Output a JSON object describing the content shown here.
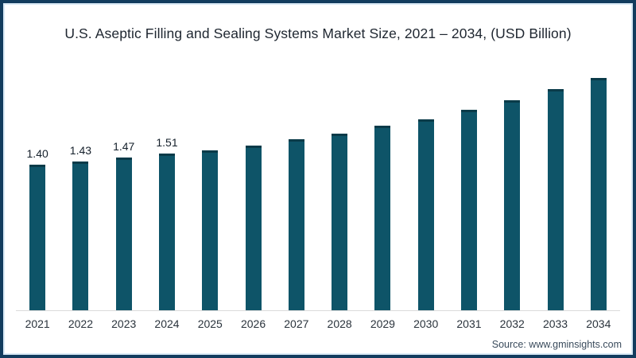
{
  "title": "U.S. Aseptic Filling and Sealing Systems Market Size, 2021 – 2034, (USD Billion)",
  "source": "Source: www.gminsights.com",
  "colors": {
    "frame_border": "#123C5E",
    "frame_hairline": "#D9EAF6",
    "background": "#FFFFFF",
    "bar": "#0E5468",
    "bar_top_cap": "#0A3B49",
    "axis_line": "#DBDBDB"
  },
  "chart_data": {
    "type": "bar",
    "title": "U.S. Aseptic Filling and Sealing Systems Market Size, 2021 – 2034, (USD Billion)",
    "xlabel": "",
    "ylabel": "USD Billion",
    "categories": [
      "2021",
      "2022",
      "2023",
      "2024",
      "2025",
      "2026",
      "2027",
      "2028",
      "2029",
      "2030",
      "2031",
      "2032",
      "2033",
      "2034"
    ],
    "values": [
      1.4,
      1.43,
      1.47,
      1.51,
      1.54,
      1.59,
      1.65,
      1.7,
      1.78,
      1.84,
      1.93,
      2.02,
      2.13,
      2.24
    ],
    "data_labels": [
      "1.40",
      "1.43",
      "1.47",
      "1.51",
      "",
      "",
      "",
      "",
      "",
      "",
      "",
      "",
      "",
      ""
    ],
    "ylim": [
      0,
      2.5
    ],
    "gridlines": false,
    "legend": "none",
    "bar_color": "#0E5468"
  }
}
